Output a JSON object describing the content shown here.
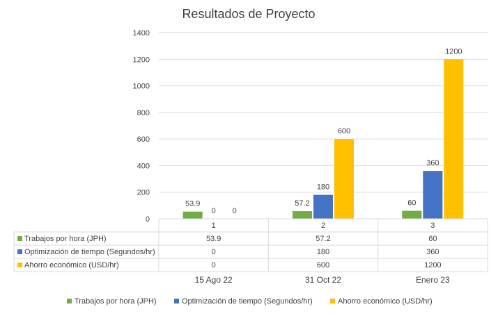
{
  "chart_data": {
    "type": "bar",
    "title": "Resultados de Proyecto",
    "categories": [
      "1",
      "2",
      "3"
    ],
    "secondary_categories": [
      "15 Ago 22",
      "31 Oct 22",
      "Enero 23"
    ],
    "series": [
      {
        "name": "Trabajos por hora (JPH)",
        "values": [
          53.9,
          57.2,
          60
        ],
        "labels": [
          "53.9",
          "57.2",
          "60"
        ],
        "color": "#70ad47"
      },
      {
        "name": "Optimización de tiempo (Segundos/hr)",
        "values": [
          0,
          180,
          360
        ],
        "labels": [
          "0",
          "180",
          "360"
        ],
        "color": "#4472c4"
      },
      {
        "name": "Ahorro económico (USD/hr)",
        "values": [
          0,
          600,
          1200
        ],
        "labels": [
          "0",
          "600",
          "1200"
        ],
        "color": "#ffc000"
      }
    ],
    "ylim": [
      0,
      1400
    ],
    "yticks": [
      "0",
      "200",
      "400",
      "600",
      "800",
      "1000",
      "1200",
      "1400"
    ],
    "grid": true,
    "legend": "bottom",
    "data_table": true
  }
}
